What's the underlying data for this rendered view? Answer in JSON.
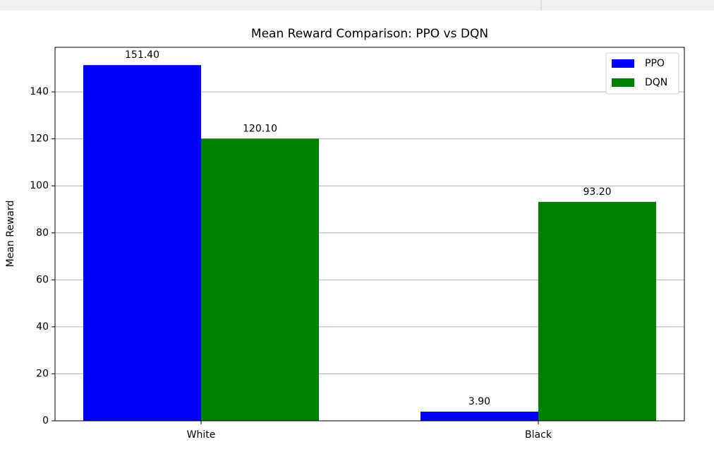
{
  "chart_data": {
    "type": "bar",
    "title": "Mean Reward Comparison: PPO vs DQN",
    "y_label": "Mean Reward",
    "categories": [
      "White",
      "Black"
    ],
    "series": [
      {
        "name": "PPO",
        "color": "#0000ff",
        "values": [
          151.4,
          3.9
        ],
        "value_labels": [
          "151.40",
          "3.90"
        ]
      },
      {
        "name": "DQN",
        "color": "#008000",
        "values": [
          120.1,
          93.2
        ],
        "value_labels": [
          "120.10",
          "93.20"
        ]
      }
    ],
    "ylim": [
      0,
      158.97
    ],
    "yticks": [
      0,
      20,
      40,
      60,
      80,
      100,
      120,
      140
    ],
    "grid": true,
    "legend": "upper right"
  }
}
